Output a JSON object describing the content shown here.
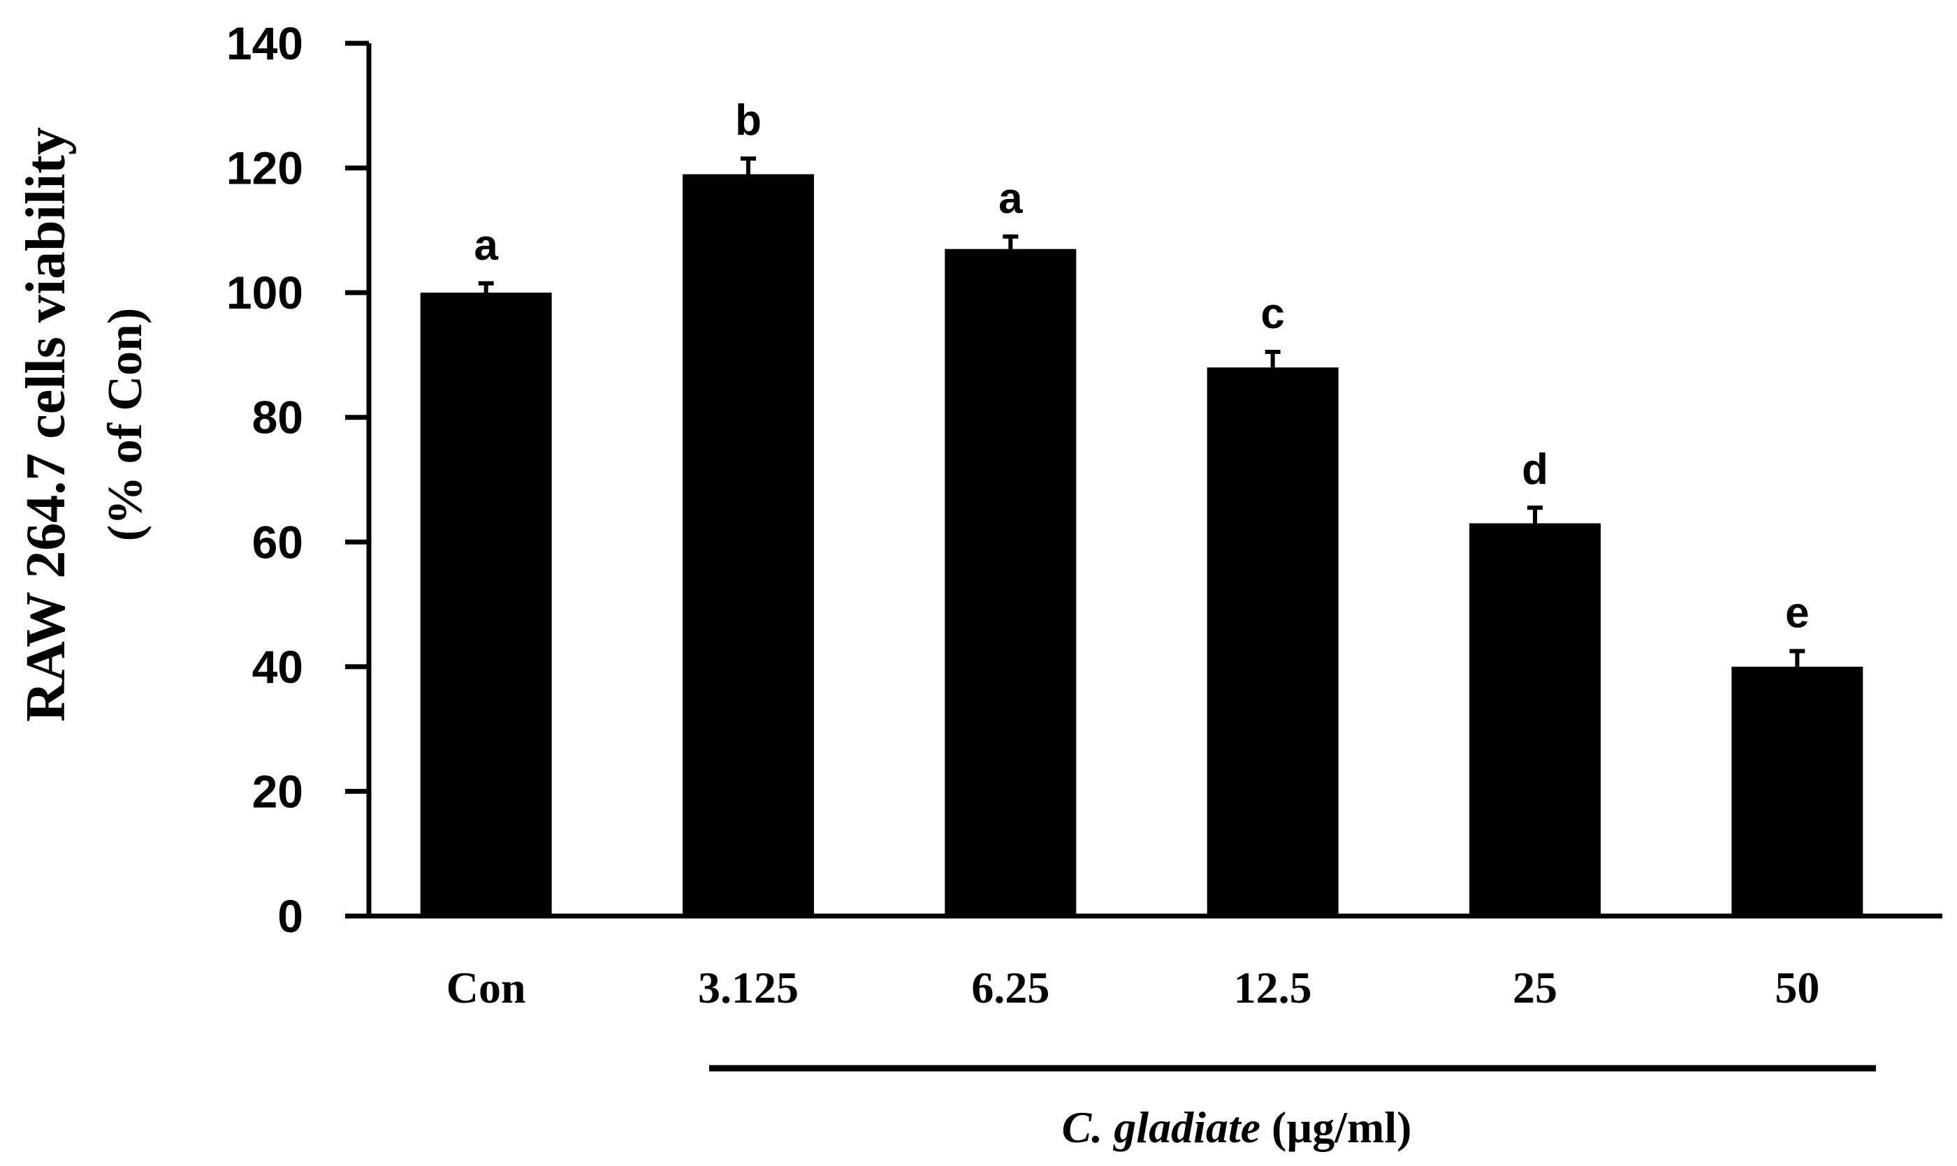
{
  "chart_data": {
    "type": "bar",
    "title": "",
    "ylabel": "RAW 264.7 cells viability",
    "ylabel_sub": "(% of  Con)",
    "xlabel_species": "C. gladiate",
    "xlabel_unit": " (µg/ml)",
    "categories": [
      "Con",
      "3.125",
      "6.25",
      "12.5",
      "25",
      "50"
    ],
    "values": [
      100,
      119,
      107,
      88,
      63,
      40
    ],
    "errors": [
      1.5,
      2.5,
      2.0,
      2.5,
      2.5,
      2.5
    ],
    "significance": [
      "a",
      "b",
      "a",
      "c",
      "d",
      "e"
    ],
    "ylim": [
      0,
      140
    ],
    "yticks": [
      0,
      20,
      40,
      60,
      80,
      100,
      120,
      140
    ],
    "grid": false,
    "bar_color": "#000000"
  }
}
